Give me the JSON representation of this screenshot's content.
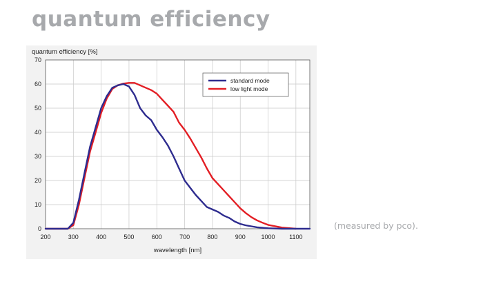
{
  "heading": "quantum efficiency",
  "note": "(measured by pco).",
  "colors": {
    "heading": "#a7a9ac",
    "panel": "#f2f2f2",
    "grid": "#c8c8c8"
  },
  "chart_data": {
    "type": "line",
    "xlabel": "wavelength [nm]",
    "ylabel": "quantum efficiency [%]",
    "xlim": [
      200,
      1150
    ],
    "ylim": [
      0,
      70
    ],
    "xticks": [
      200,
      300,
      400,
      500,
      600,
      700,
      800,
      900,
      1000,
      1100
    ],
    "yticks": [
      0,
      10,
      20,
      30,
      40,
      50,
      60,
      70
    ],
    "grid": true,
    "legend_position": "top-right",
    "series": [
      {
        "name": "standard mode",
        "color": "#2e2c8f",
        "x": [
          200,
          260,
          280,
          300,
          320,
          340,
          360,
          380,
          400,
          420,
          440,
          460,
          480,
          500,
          520,
          540,
          560,
          580,
          600,
          620,
          640,
          660,
          680,
          700,
          720,
          740,
          760,
          780,
          800,
          820,
          840,
          860,
          880,
          900,
          920,
          940,
          960,
          980,
          1000,
          1050,
          1100,
          1150
        ],
        "y": [
          0,
          0,
          0,
          2.5,
          12,
          23,
          34,
          42,
          50,
          55,
          58.5,
          59.5,
          60,
          59,
          55.5,
          50,
          47,
          45,
          41,
          38,
          34.5,
          30,
          25,
          20,
          17,
          14,
          11.5,
          9,
          8,
          7,
          5.5,
          4.5,
          3,
          2,
          1.4,
          1,
          0.6,
          0.4,
          0.2,
          0,
          0,
          0
        ]
      },
      {
        "name": "low light mode",
        "color": "#e31e24",
        "x": [
          200,
          240,
          260,
          280,
          300,
          320,
          340,
          360,
          380,
          400,
          420,
          440,
          460,
          480,
          500,
          520,
          540,
          560,
          580,
          600,
          620,
          640,
          660,
          680,
          700,
          720,
          740,
          760,
          780,
          800,
          820,
          840,
          860,
          880,
          900,
          920,
          940,
          960,
          980,
          1000,
          1050,
          1100
        ],
        "y": [
          0,
          0,
          0,
          0,
          1.5,
          10,
          21,
          32,
          40,
          48,
          54,
          58,
          59.5,
          60.2,
          60.5,
          60.5,
          59.5,
          58.5,
          57.5,
          56,
          53.5,
          51,
          48.5,
          44,
          41,
          37.5,
          33.5,
          29.5,
          25,
          21,
          18.5,
          16,
          13.5,
          11,
          8.5,
          6.5,
          4.8,
          3.5,
          2.5,
          1.6,
          0.5,
          0
        ]
      }
    ]
  }
}
